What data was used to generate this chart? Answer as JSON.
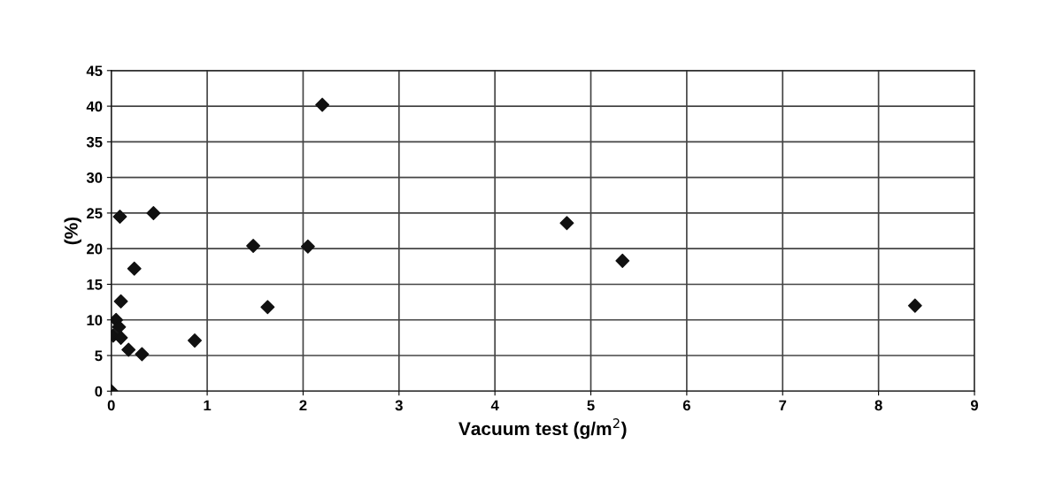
{
  "chart_data": {
    "type": "scatter",
    "xlabel": "Vacuum test (g/m$^{2}$)",
    "ylabel": "(%)",
    "x": [
      0,
      0.09,
      0.44,
      1.48,
      2.05,
      2.2,
      0.24,
      0.1,
      0.05,
      0.08,
      0.02,
      0.1,
      0.18,
      0.32,
      0.87,
      1.63,
      4.75,
      5.33,
      8.38
    ],
    "series": [
      {
        "color": "#111111",
        "values": [
          0,
          24.5,
          25,
          20.4,
          20.3,
          40.2,
          17.2,
          12.6,
          10,
          9,
          7.8,
          7.5,
          5.8,
          5.2,
          7.1,
          11.8,
          23.6,
          18.3,
          12
        ]
      }
    ],
    "xlim": [
      0,
      9
    ],
    "xticks": [
      0,
      1,
      2,
      3,
      4,
      5,
      6,
      7,
      8,
      9
    ],
    "ylim": [
      0,
      45
    ],
    "yticks": [
      0,
      5,
      10,
      15,
      20,
      25,
      30,
      35,
      40,
      45
    ],
    "grid": true,
    "marker": "diamond"
  }
}
